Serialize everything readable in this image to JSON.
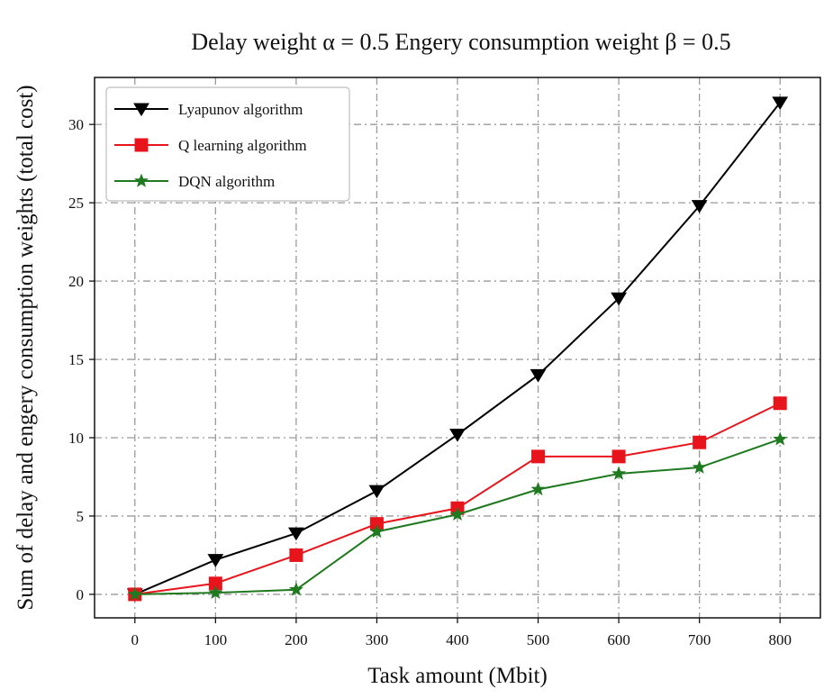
{
  "chart_data": {
    "type": "line",
    "title": "Delay weight α = 0.5 Engery consumption weight β = 0.5",
    "xlabel": "Task amount (Mbit)",
    "ylabel": "Sum of delay and  engery consumption weights (total cost)",
    "x": [
      0,
      100,
      200,
      300,
      400,
      500,
      600,
      700,
      800
    ],
    "xlim": [
      -50,
      850
    ],
    "ylim": [
      -1.5,
      33
    ],
    "xticks": [
      0,
      100,
      200,
      300,
      400,
      500,
      600,
      700,
      800
    ],
    "yticks": [
      0,
      5,
      10,
      15,
      20,
      25,
      30
    ],
    "grid": true,
    "legend_position": "top-left",
    "series": [
      {
        "name": "Lyapunov algorithm",
        "color": "#000000",
        "marker": "triangle-down",
        "values": [
          0,
          2.2,
          3.9,
          6.6,
          10.2,
          14.0,
          18.9,
          24.8,
          31.4
        ]
      },
      {
        "name": "Q learning algorithm",
        "color": "#e8141c",
        "marker": "square",
        "values": [
          0,
          0.7,
          2.5,
          4.5,
          5.5,
          8.8,
          8.8,
          9.7,
          12.2
        ]
      },
      {
        "name": "DQN algorithm",
        "color": "#1f7a1f",
        "marker": "star",
        "values": [
          0,
          0.1,
          0.3,
          4.0,
          5.1,
          6.7,
          7.7,
          8.1,
          9.9
        ]
      }
    ]
  }
}
